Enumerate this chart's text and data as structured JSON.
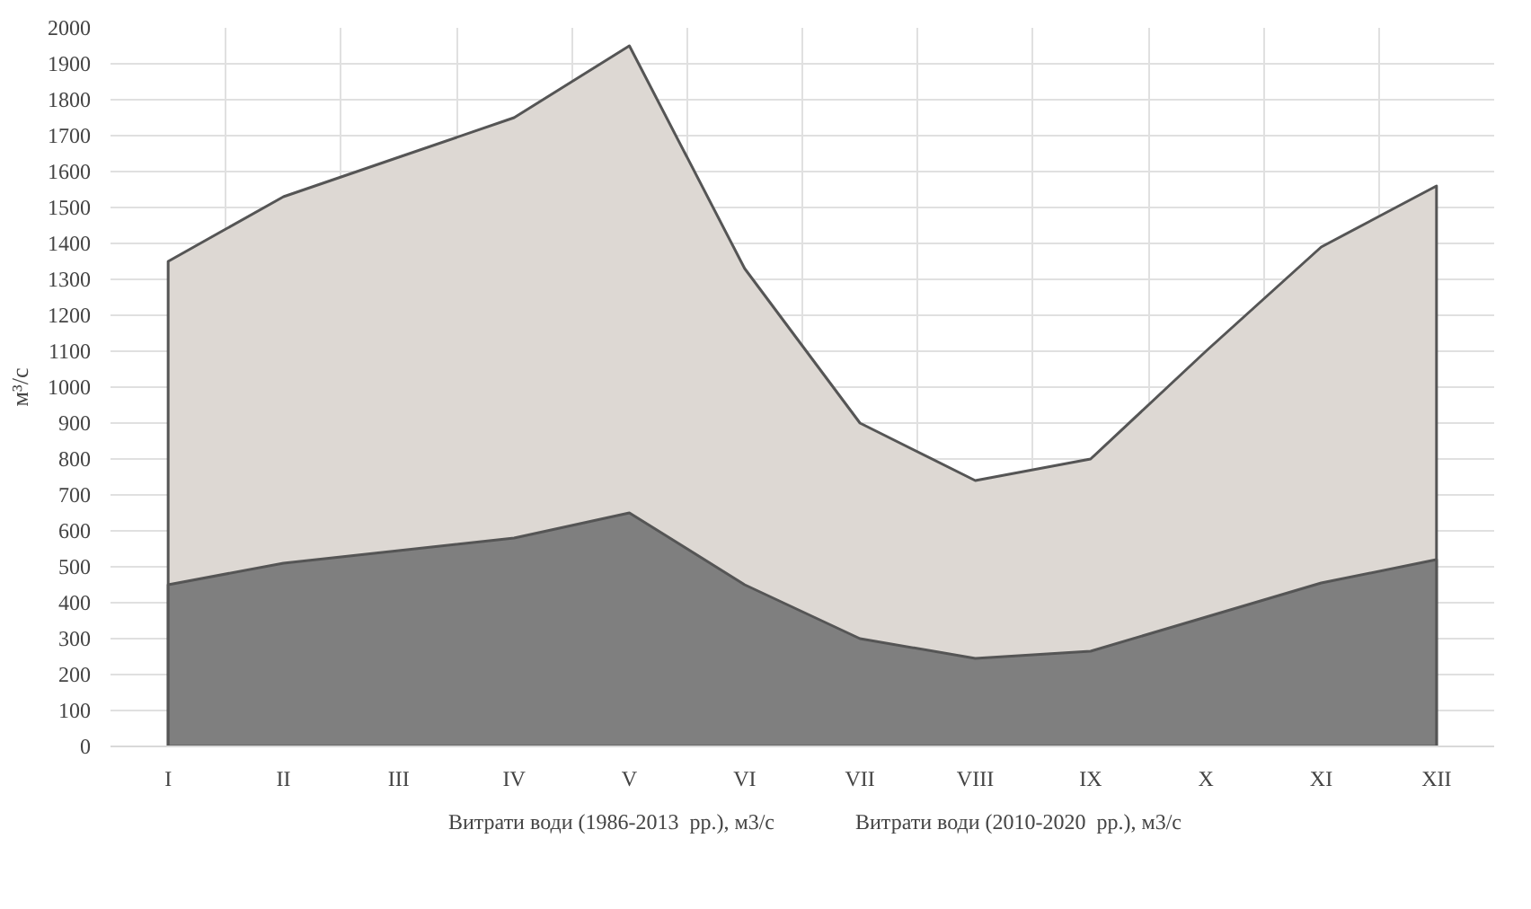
{
  "chart_data": {
    "type": "area",
    "ylabel": "м³/с",
    "categories": [
      "I",
      "II",
      "III",
      "IV",
      "V",
      "VI",
      "VII",
      "VIII",
      "IX",
      "X",
      "XI",
      "XII"
    ],
    "series": [
      {
        "name": "Витрати води (1986-2013  рр.), м3/с",
        "color": "#ddd8d3",
        "values": [
          1350,
          1530,
          1640,
          1750,
          1950,
          1330,
          900,
          740,
          800,
          1100,
          1390,
          1560
        ]
      },
      {
        "name": "Витрати води (2010-2020  рр.), м3/с",
        "color": "#7f7f7f",
        "values": [
          450,
          510,
          545,
          580,
          650,
          450,
          300,
          245,
          265,
          360,
          455,
          520
        ]
      }
    ],
    "ylim": [
      0,
      2000
    ],
    "yticks": [
      0,
      100,
      200,
      300,
      400,
      500,
      600,
      700,
      800,
      900,
      1000,
      1100,
      1200,
      1300,
      1400,
      1500,
      1600,
      1700,
      1800,
      1900,
      2000
    ],
    "grid": true,
    "legend": "bottom"
  }
}
